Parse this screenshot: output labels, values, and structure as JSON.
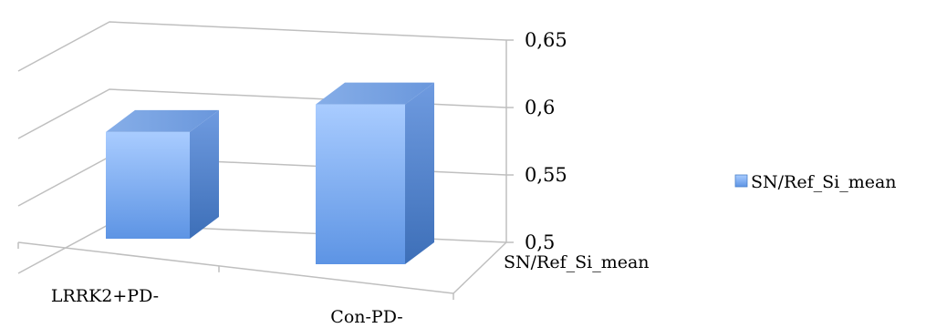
{
  "chart_data": {
    "type": "bar",
    "style": "3d-column",
    "categories": [
      "LRRK2+PD-",
      "Con-PD-"
    ],
    "series": [
      {
        "name": "SN/Ref_Si_mean",
        "values": [
          0.5686,
          0.6204
        ]
      }
    ],
    "depth_axis_label": "SN/Ref_Si_mean",
    "ylim": [
      0.5,
      0.65
    ],
    "yticks": [
      "0,5",
      "0,55",
      "0,6",
      "0,65"
    ],
    "ytick_values": [
      0.5,
      0.55,
      0.6,
      0.65
    ],
    "grid": true,
    "legend": {
      "position": "right",
      "entries": [
        "SN/Ref_Si_mean"
      ]
    },
    "colors": {
      "bar_light": "#a9ccff",
      "bar_dark": "#4a7fc8",
      "grid": "#bfbfbf"
    }
  }
}
